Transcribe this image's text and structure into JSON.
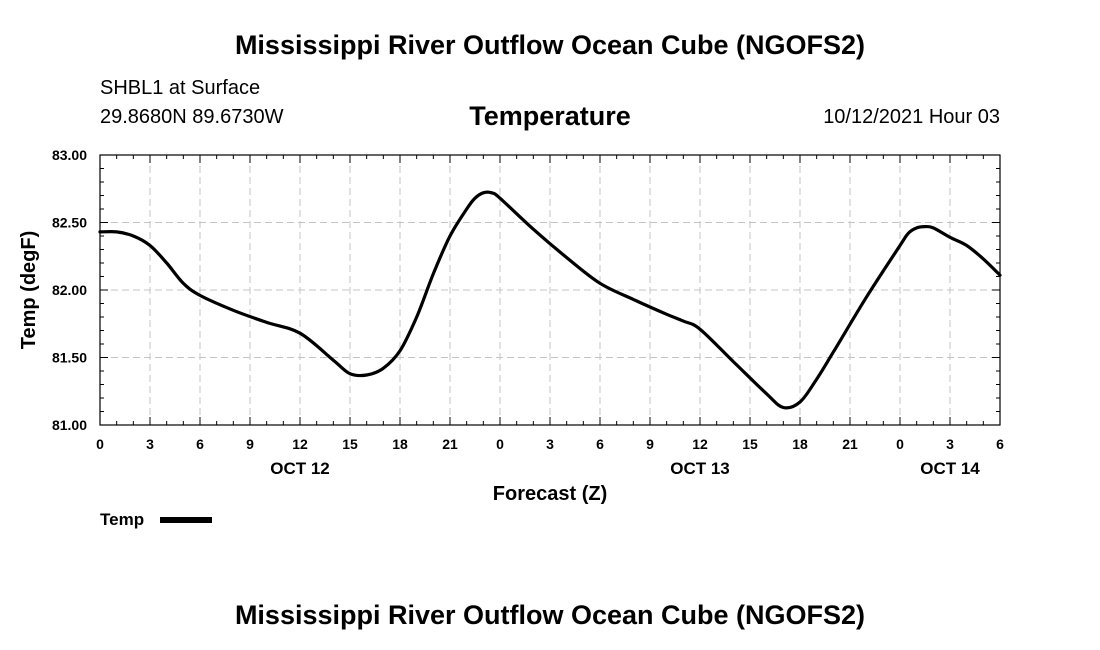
{
  "header": {
    "title": "Mississippi River Outflow Ocean Cube (NGOFS2)",
    "station": "SHBL1 at Surface",
    "coords": "29.8680N  89.6730W",
    "chart_title": "Temperature",
    "datetime": "10/12/2021 Hour 03"
  },
  "footer": {
    "title": "Mississippi River Outflow Ocean Cube (NGOFS2)"
  },
  "chart_data": {
    "type": "line",
    "title": "Temperature",
    "xlabel": "Forecast (Z)",
    "ylabel": "Temp (degF)",
    "ylim": [
      81.0,
      83.0
    ],
    "xlim": [
      0,
      54
    ],
    "x_unit": "hours from Oct 12 00Z",
    "y_ticks": [
      "81.00",
      "81.50",
      "82.00",
      "82.50",
      "83.00"
    ],
    "x_ticks": [
      {
        "h": 0,
        "label": "0"
      },
      {
        "h": 3,
        "label": "3"
      },
      {
        "h": 6,
        "label": "6"
      },
      {
        "h": 9,
        "label": "9"
      },
      {
        "h": 12,
        "label": "12"
      },
      {
        "h": 15,
        "label": "15"
      },
      {
        "h": 18,
        "label": "18"
      },
      {
        "h": 21,
        "label": "21"
      },
      {
        "h": 24,
        "label": "0"
      },
      {
        "h": 27,
        "label": "3"
      },
      {
        "h": 30,
        "label": "6"
      },
      {
        "h": 33,
        "label": "9"
      },
      {
        "h": 36,
        "label": "12"
      },
      {
        "h": 39,
        "label": "15"
      },
      {
        "h": 42,
        "label": "18"
      },
      {
        "h": 45,
        "label": "21"
      },
      {
        "h": 48,
        "label": "0"
      },
      {
        "h": 51,
        "label": "3"
      },
      {
        "h": 54,
        "label": "6"
      }
    ],
    "day_labels": [
      {
        "h": 12,
        "label": "OCT 12"
      },
      {
        "h": 36,
        "label": "OCT 13"
      },
      {
        "h": 51,
        "label": "OCT 14"
      }
    ],
    "grid": true,
    "legend": {
      "label": "Temp",
      "placement": "bottom-left"
    },
    "series": [
      {
        "name": "Temp",
        "color": "#000000",
        "x": [
          0,
          1,
          2,
          3,
          4,
          5,
          6,
          8,
          10,
          12,
          14,
          15,
          16,
          17,
          18,
          19,
          20,
          21,
          22,
          22.5,
          23,
          23.5,
          24,
          26,
          28,
          30,
          32,
          34,
          35,
          36,
          38,
          40,
          41,
          42,
          43,
          44,
          46,
          48,
          48.5,
          49,
          49.5,
          50,
          51,
          52,
          53,
          54
        ],
        "y": [
          82.43,
          82.43,
          82.4,
          82.33,
          82.2,
          82.05,
          81.96,
          81.85,
          81.76,
          81.68,
          81.48,
          81.38,
          81.37,
          81.42,
          81.55,
          81.8,
          82.12,
          82.4,
          82.6,
          82.68,
          82.72,
          82.72,
          82.68,
          82.45,
          82.24,
          82.05,
          81.93,
          81.82,
          81.77,
          81.71,
          81.47,
          81.23,
          81.13,
          81.17,
          81.34,
          81.54,
          81.95,
          82.33,
          82.42,
          82.46,
          82.47,
          82.46,
          82.39,
          82.33,
          82.23,
          82.11
        ]
      }
    ]
  }
}
